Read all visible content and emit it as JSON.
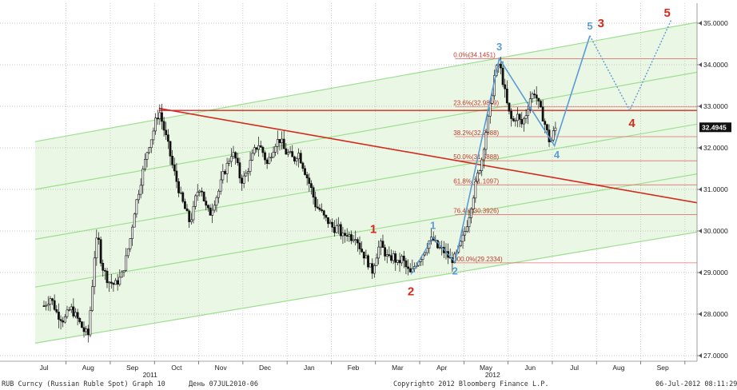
{
  "chart_data": {
    "type": "candlestick",
    "ylim": [
      26.8,
      35.4
    ],
    "y_ticks": [
      "27.0000",
      "28.0000",
      "29.0000",
      "30.0000",
      "31.0000",
      "32.0000",
      "33.0000",
      "34.0000",
      "35.0000"
    ],
    "y_tick_values": [
      27,
      28,
      29,
      30,
      31,
      32,
      33,
      34,
      35
    ],
    "x_ticks": [
      "Jul",
      "Aug",
      "Sep",
      "Oct",
      "Nov",
      "Dec",
      "Jan",
      "Feb",
      "Mar",
      "Apr",
      "May",
      "Jun",
      "Jul",
      "Aug",
      "Sep"
    ],
    "x_tick_index": [
      0,
      1,
      2,
      3,
      4,
      5,
      6,
      7,
      8,
      9,
      10,
      11,
      12,
      13,
      14
    ],
    "year_labels": [
      {
        "label": "2011",
        "month_index": 2.4
      },
      {
        "label": "2012",
        "month_index": 10.15
      }
    ],
    "last_price": "32.4945",
    "last_price_value": 32.4945,
    "grid": true,
    "price_path": [
      [
        0,
        28.2
      ],
      [
        0.15,
        28.4
      ],
      [
        0.3,
        28.0
      ],
      [
        0.45,
        27.85
      ],
      [
        0.6,
        28.15
      ],
      [
        0.75,
        27.9
      ],
      [
        0.9,
        27.6
      ],
      [
        1.0,
        27.5
      ],
      [
        1.08,
        28.5
      ],
      [
        1.15,
        29.5
      ],
      [
        1.22,
        29.9
      ],
      [
        1.3,
        29.2
      ],
      [
        1.45,
        28.8
      ],
      [
        1.6,
        28.7
      ],
      [
        1.75,
        28.9
      ],
      [
        1.85,
        29.3
      ],
      [
        1.95,
        29.8
      ],
      [
        2.05,
        30.5
      ],
      [
        2.15,
        31.0
      ],
      [
        2.25,
        31.5
      ],
      [
        2.35,
        32.0
      ],
      [
        2.45,
        32.3
      ],
      [
        2.55,
        32.75
      ],
      [
        2.62,
        32.85
      ],
      [
        2.7,
        32.5
      ],
      [
        2.8,
        32.1
      ],
      [
        2.9,
        31.6
      ],
      [
        3.0,
        31.2
      ],
      [
        3.1,
        30.8
      ],
      [
        3.2,
        30.5
      ],
      [
        3.3,
        30.2
      ],
      [
        3.38,
        30.5
      ],
      [
        3.45,
        30.9
      ],
      [
        3.55,
        31.1
      ],
      [
        3.65,
        30.6
      ],
      [
        3.75,
        30.4
      ],
      [
        3.85,
        30.7
      ],
      [
        3.95,
        30.95
      ],
      [
        4.05,
        31.35
      ],
      [
        4.15,
        31.6
      ],
      [
        4.25,
        31.9
      ],
      [
        4.35,
        31.7
      ],
      [
        4.45,
        31.2
      ],
      [
        4.55,
        31.3
      ],
      [
        4.65,
        31.6
      ],
      [
        4.75,
        31.9
      ],
      [
        4.85,
        32.1
      ],
      [
        4.95,
        31.9
      ],
      [
        5.05,
        31.6
      ],
      [
        5.15,
        31.9
      ],
      [
        5.25,
        32.15
      ],
      [
        5.35,
        32.2
      ],
      [
        5.45,
        31.9
      ],
      [
        5.55,
        31.85
      ],
      [
        5.65,
        31.7
      ],
      [
        5.75,
        31.9
      ],
      [
        5.85,
        31.6
      ],
      [
        5.95,
        31.3
      ],
      [
        6.05,
        31.0
      ],
      [
        6.15,
        30.6
      ],
      [
        6.25,
        30.5
      ],
      [
        6.35,
        30.3
      ],
      [
        6.45,
        30.2
      ],
      [
        6.55,
        30.05
      ],
      [
        6.65,
        30.1
      ],
      [
        6.75,
        29.85
      ],
      [
        6.85,
        29.95
      ],
      [
        6.95,
        29.85
      ],
      [
        7.05,
        29.9
      ],
      [
        7.15,
        29.6
      ],
      [
        7.25,
        29.4
      ],
      [
        7.35,
        29.2
      ],
      [
        7.42,
        29.0
      ],
      [
        7.5,
        29.35
      ],
      [
        7.6,
        29.7
      ],
      [
        7.7,
        29.5
      ],
      [
        7.8,
        29.3
      ],
      [
        7.9,
        29.4
      ],
      [
        8.0,
        29.2
      ],
      [
        8.1,
        29.35
      ],
      [
        8.2,
        29.1
      ],
      [
        8.3,
        28.95
      ],
      [
        8.4,
        29.2
      ],
      [
        8.5,
        29.35
      ],
      [
        8.6,
        29.5
      ],
      [
        8.7,
        29.75
      ],
      [
        8.8,
        29.8
      ],
      [
        8.9,
        29.6
      ],
      [
        9.0,
        29.55
      ],
      [
        9.1,
        29.45
      ],
      [
        9.2,
        29.3
      ],
      [
        9.3,
        29.35
      ],
      [
        9.4,
        29.6
      ],
      [
        9.5,
        29.9
      ],
      [
        9.6,
        30.3
      ],
      [
        9.7,
        30.8
      ],
      [
        9.8,
        31.3
      ],
      [
        9.9,
        31.7
      ],
      [
        10.0,
        32.4
      ],
      [
        10.1,
        33.0
      ],
      [
        10.2,
        33.8
      ],
      [
        10.3,
        34.05
      ],
      [
        10.4,
        33.5
      ],
      [
        10.5,
        32.9
      ],
      [
        10.6,
        32.6
      ],
      [
        10.7,
        32.8
      ],
      [
        10.8,
        32.55
      ],
      [
        10.9,
        32.8
      ],
      [
        11.0,
        33.2
      ],
      [
        11.1,
        33.35
      ],
      [
        11.2,
        33.0
      ],
      [
        11.3,
        32.7
      ],
      [
        11.4,
        32.3
      ],
      [
        11.45,
        32.1
      ],
      [
        11.55,
        32.45
      ],
      [
        11.6,
        32.4945
      ]
    ],
    "channel_lines": [
      {
        "name": "",
        "start": [
          -0.2,
          32.15
        ],
        "end": [
          15.2,
          35.1
        ]
      },
      {
        "name": "",
        "start": [
          -0.2,
          31.0
        ],
        "end": [
          15.2,
          33.9
        ]
      },
      {
        "name": "",
        "start": [
          -0.2,
          29.8
        ],
        "end": [
          15.2,
          32.65
        ]
      },
      {
        "name": "",
        "start": [
          -0.2,
          28.65
        ],
        "end": [
          15.2,
          31.45
        ]
      },
      {
        "name": "",
        "start": [
          -0.2,
          27.3
        ],
        "end": [
          15.2,
          30.05
        ]
      }
    ],
    "resistance_line": {
      "start": [
        2.6,
        32.9
      ],
      "end": [
        15.2,
        32.9
      ]
    },
    "trend_line": {
      "start": [
        2.6,
        32.95
      ],
      "end": [
        15.2,
        30.6
      ]
    },
    "fibonacci": [
      {
        "label": "0.0%(34.1451)",
        "value": 34.1451
      },
      {
        "label": "23.6%(32.9859)",
        "value": 32.9859
      },
      {
        "label": "38.2%(32.2688)",
        "value": 32.2688
      },
      {
        "label": "50.0%(31.6888)",
        "value": 31.6888
      },
      {
        "label": "61.8%(31.1097)",
        "value": 31.1097
      },
      {
        "label": "76.4%(30.3926)",
        "value": 30.3926
      },
      {
        "label": "100.0%(29.2334)",
        "value": 29.2334
      }
    ],
    "fib_x_start": 9.3,
    "fib_x_end": 15.2,
    "wave_blue_solid": [
      [
        9.3,
        29.25
      ],
      [
        10.3,
        34.15
      ],
      [
        11.55,
        32.05
      ],
      [
        12.35,
        34.7
      ]
    ],
    "wave_blue_dotted": [
      [
        12.35,
        34.7
      ],
      [
        13.25,
        32.9
      ],
      [
        14.2,
        35.1
      ]
    ],
    "wave_blue_minor": [
      [
        8.3,
        28.95
      ],
      [
        8.8,
        29.85
      ],
      [
        9.3,
        29.25
      ]
    ],
    "wave_labels": [
      {
        "text": "1",
        "x": 7.45,
        "y": 29.95,
        "color": "red"
      },
      {
        "text": "2",
        "x": 8.3,
        "y": 28.45,
        "color": "red"
      },
      {
        "text": "1",
        "x": 8.8,
        "y": 30.05,
        "color": "blue"
      },
      {
        "text": "2",
        "x": 9.3,
        "y": 28.95,
        "color": "blue"
      },
      {
        "text": "3",
        "x": 10.3,
        "y": 34.35,
        "color": "blue"
      },
      {
        "text": "4",
        "x": 11.6,
        "y": 31.75,
        "color": "blue"
      },
      {
        "text": "5",
        "x": 12.35,
        "y": 34.85,
        "color": "blue"
      },
      {
        "text": "3",
        "x": 12.6,
        "y": 34.9,
        "color": "red"
      },
      {
        "text": "4",
        "x": 13.3,
        "y": 32.5,
        "color": "red"
      },
      {
        "text": "5",
        "x": 14.1,
        "y": 35.15,
        "color": "red"
      }
    ]
  },
  "colors": {
    "channel_fill": "#eaf7e4",
    "channel_line": "#9bdf8e",
    "red": "#d42a1e",
    "blue": "#5b9bd5",
    "fib_line": "#e07070",
    "fib_text": "#c0392b",
    "grid": "#b8b8b8",
    "candle": "#111111",
    "price_tag_bg": "#111111",
    "price_tag_text": "#ffffff"
  },
  "footer": {
    "left": "RUB Curncy (Russian Ruble Spot) Graph 10",
    "middle": "День 07JUL2010-06",
    "copyright": "Copyright© 2012 Bloomberg Finance L.P.",
    "right": "06-Jul-2012 08:11:29"
  }
}
